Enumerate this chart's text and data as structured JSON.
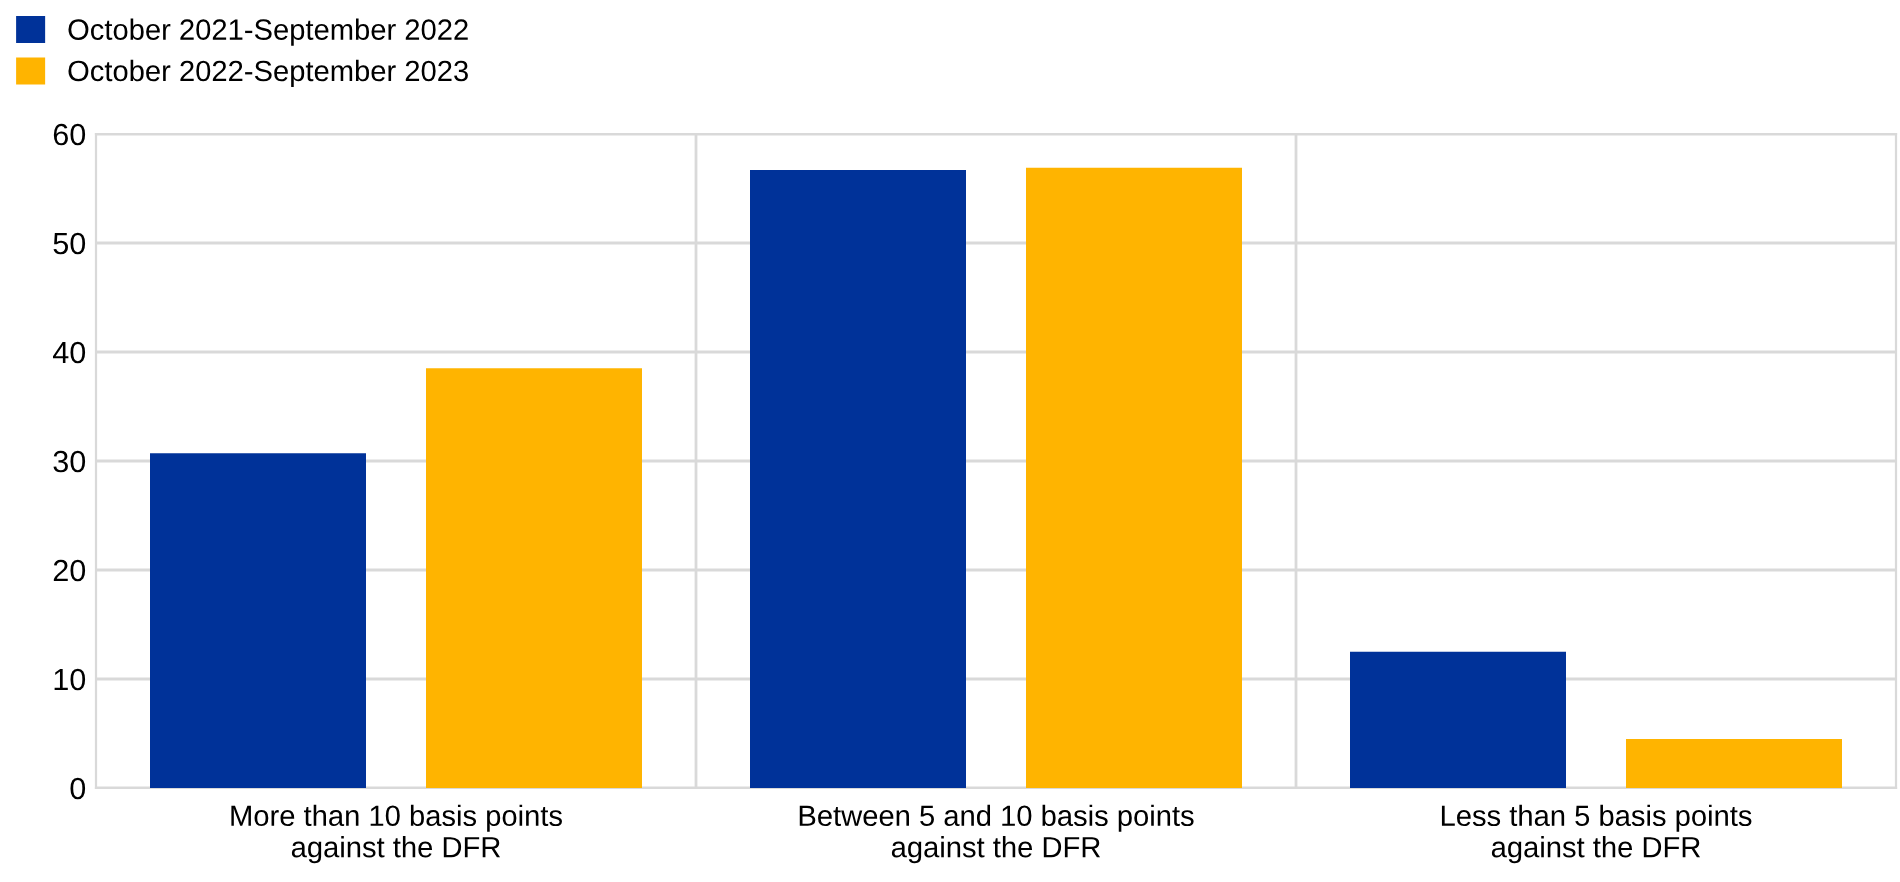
{
  "chart_data": {
    "type": "bar",
    "categories": [
      "More than 10 basis points\nagainst the DFR",
      "Between 5 and 10 basis points\nagainst the DFR",
      "Less than 5 basis points\nagainst the DFR"
    ],
    "series": [
      {
        "name": "October 2021-September 2022",
        "color": "#003299",
        "values": [
          30.7,
          56.7,
          12.5
        ]
      },
      {
        "name": "October 2022-September 2023",
        "color": "#ffb400",
        "values": [
          38.5,
          56.9,
          4.5
        ]
      }
    ],
    "ylim": [
      0,
      60
    ],
    "yticks": [
      0,
      10,
      20,
      30,
      40,
      50,
      60
    ],
    "grid": true,
    "legend": "top left"
  }
}
